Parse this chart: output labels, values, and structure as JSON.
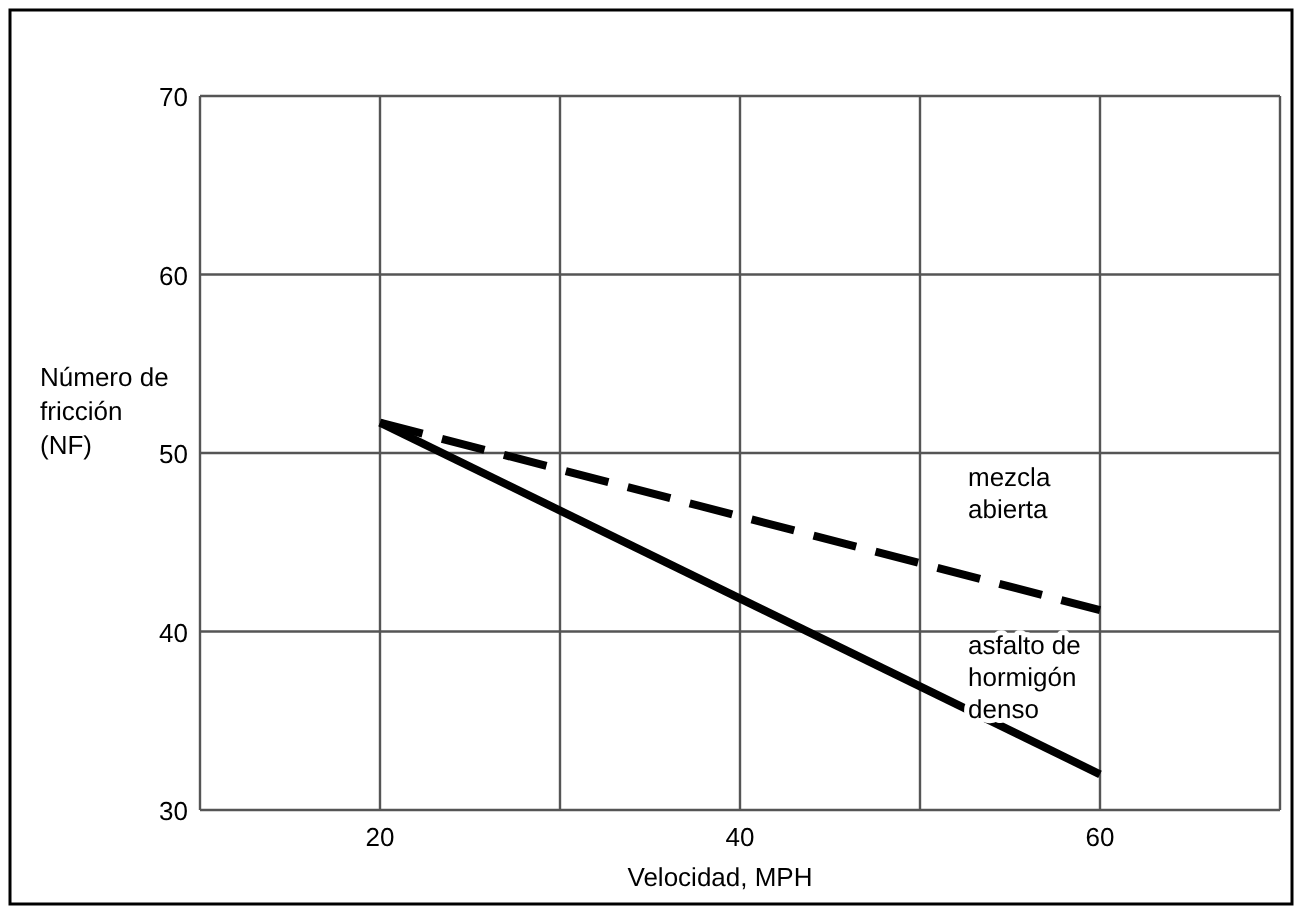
{
  "chart_data": {
    "type": "line",
    "xlabel": "Velocidad, MPH",
    "ylabel": "Número de fricción (NF)",
    "x": [
      20,
      60
    ],
    "series": [
      {
        "name": "mezcla abierta",
        "color": "#000000",
        "values": [
          51.7,
          41.2
        ],
        "line_style": "dashed"
      },
      {
        "name": "asfalto de hormigón denso",
        "color": "#000000",
        "values": [
          51.7,
          32
        ],
        "line_style": "solid"
      }
    ],
    "xlim": [
      10,
      70
    ],
    "xticks": [
      {
        "value": 10,
        "label": null
      },
      20,
      {
        "value": 30,
        "label": null
      },
      40,
      {
        "value": 50,
        "label": null
      },
      60,
      {
        "value": 70,
        "label": null
      }
    ],
    "ylim": [
      30,
      70
    ],
    "yticks": [
      30,
      40,
      50,
      60,
      70
    ],
    "grid": true,
    "marker": "none"
  }
}
